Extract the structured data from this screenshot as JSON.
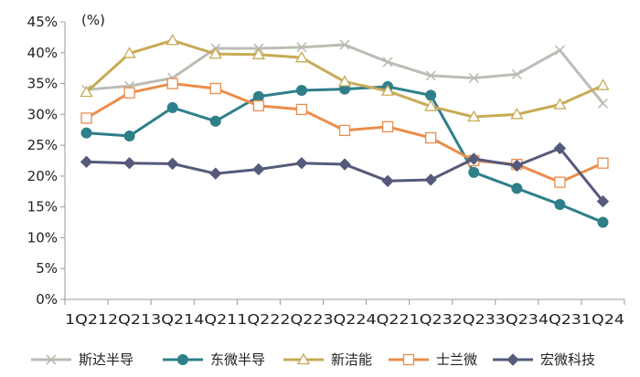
{
  "chart_data": {
    "type": "line",
    "unit_label": "(%)",
    "ylim": [
      0,
      45
    ],
    "y_ticks": [
      "0%",
      "5%",
      "10%",
      "15%",
      "20%",
      "25%",
      "30%",
      "35%",
      "40%",
      "45%"
    ],
    "categories": [
      "1Q21",
      "2Q21",
      "3Q21",
      "4Q21",
      "1Q22",
      "2Q22",
      "3Q22",
      "4Q22",
      "1Q23",
      "2Q23",
      "3Q23",
      "4Q23",
      "1Q24"
    ],
    "x_tick_labels": [
      "1Q21",
      "2Q21",
      "3Q21",
      "4Q21",
      "1Q22",
      "2Q22",
      "3Q22",
      "4Q22",
      "1Q23",
      "2Q23",
      "3Q23",
      "4Q23",
      "1Q24"
    ],
    "grid": false,
    "legend_position": "bottom",
    "series": [
      {
        "name": "斯达半导",
        "color": "#bcbcb4",
        "marker": "x",
        "values": [
          34.0,
          34.6,
          35.9,
          40.7,
          40.7,
          40.9,
          41.3,
          38.5,
          36.3,
          35.9,
          36.5,
          40.4,
          31.8
        ]
      },
      {
        "name": "东微半导",
        "color": "#2e7f8a",
        "marker": "circle",
        "values": [
          27.0,
          26.5,
          31.1,
          28.9,
          32.9,
          33.9,
          34.1,
          34.5,
          33.1,
          20.6,
          18.0,
          15.4,
          12.5
        ]
      },
      {
        "name": "新洁能",
        "color": "#c8aa55",
        "marker": "triangle",
        "values": [
          33.6,
          39.9,
          42.0,
          39.8,
          39.7,
          39.2,
          35.3,
          33.8,
          31.3,
          29.6,
          30.0,
          31.6,
          34.7
        ]
      },
      {
        "name": "士兰微",
        "color": "#ea8d4b",
        "marker": "square",
        "values": [
          29.4,
          33.5,
          35.0,
          34.2,
          31.4,
          30.8,
          27.4,
          28.0,
          26.2,
          22.5,
          21.9,
          19.0,
          22.1
        ]
      },
      {
        "name": "宏微科技",
        "color": "#555a7a",
        "marker": "diamond",
        "values": [
          22.3,
          22.1,
          22.0,
          20.4,
          21.1,
          22.1,
          21.9,
          19.2,
          19.4,
          22.8,
          21.7,
          24.5,
          15.9
        ]
      }
    ]
  }
}
